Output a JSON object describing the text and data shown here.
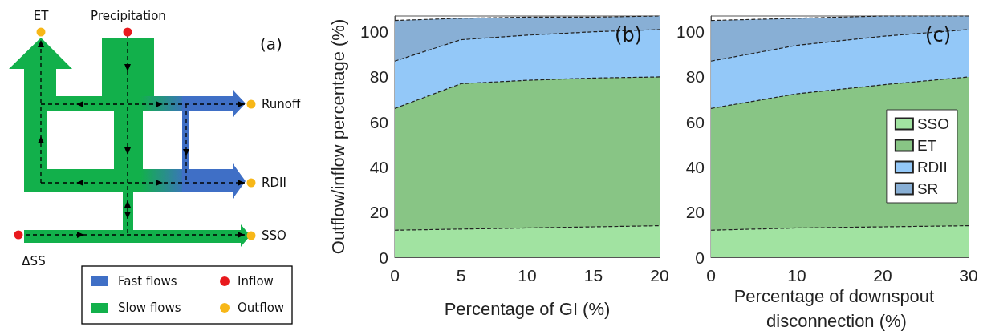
{
  "chart_data": [
    {
      "type": "other",
      "annotations": [
        "ET",
        "Precipitation",
        "(a)",
        "Runoff",
        "RDII",
        "SSO",
        "ΔSS",
        "Fast flows",
        "Inflow",
        "Slow flows",
        "Outflow"
      ]
    },
    {
      "type": "area",
      "stacked": true,
      "x": [
        0,
        5,
        10,
        15,
        20
      ],
      "xlim": [
        0,
        20
      ],
      "xticks": [
        0,
        5,
        10,
        15,
        20
      ],
      "ylim": [
        0,
        107
      ],
      "yticks": [
        0,
        20,
        40,
        60,
        80,
        100
      ],
      "xlabel": "Percentage of GI (%)",
      "ylabel": "Outflow/inflow percentage (%)",
      "line_style": "dashed",
      "grid": false,
      "annotations": [
        "(b)"
      ],
      "series": [
        {
          "color": "#a1e3a1",
          "values": [
            12,
            12.5,
            13,
            13.5,
            14
          ]
        },
        {
          "color": "#88c585",
          "values": [
            54,
            64.5,
            65.5,
            66,
            66
          ]
        },
        {
          "color": "#93c8f8",
          "values": [
            21,
            19.5,
            20,
            20.5,
            21
          ]
        },
        {
          "color": "#88afd5",
          "values": [
            18,
            9.5,
            8,
            6.5,
            6
          ]
        }
      ]
    },
    {
      "type": "area",
      "stacked": true,
      "x": [
        0,
        10,
        20,
        30
      ],
      "xlim": [
        0,
        30
      ],
      "xticks": [
        0,
        10,
        20,
        30
      ],
      "ylim": [
        0,
        107
      ],
      "yticks": [
        0,
        20,
        40,
        60,
        80,
        100
      ],
      "xlabel": "Percentage of downspout disconnection (%)",
      "line_style": "dashed",
      "legend": "right",
      "grid": false,
      "annotations": [
        "(c)"
      ],
      "series": [
        {
          "name": "SSO",
          "color": "#a1e3a1",
          "values": [
            12,
            13,
            13.5,
            14
          ]
        },
        {
          "name": "ET",
          "color": "#88c585",
          "values": [
            54,
            59.5,
            63,
            66
          ]
        },
        {
          "name": "RDII",
          "color": "#93c8f8",
          "values": [
            21,
            21.5,
            21.5,
            21
          ]
        },
        {
          "name": "SR",
          "color": "#88afd5",
          "values": [
            18,
            12,
            9,
            6
          ]
        }
      ]
    }
  ]
}
